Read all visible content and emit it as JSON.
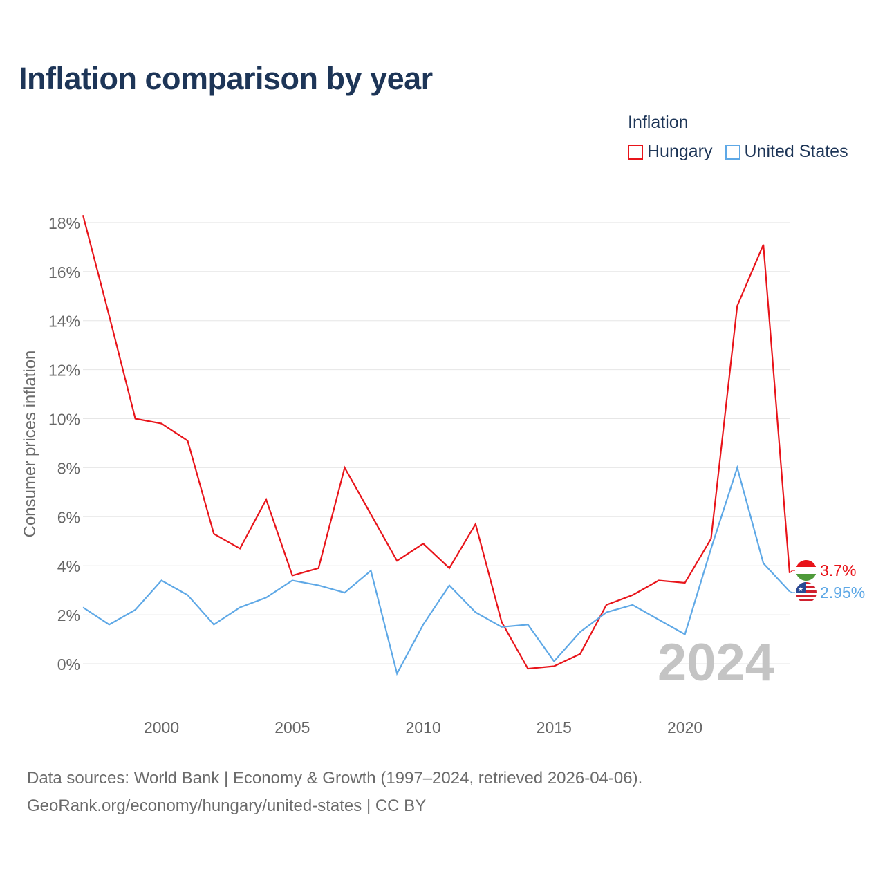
{
  "title": "Inflation comparison by year",
  "legend": {
    "title": "Inflation",
    "items": [
      {
        "label": "Hungary",
        "color": "#e8141a"
      },
      {
        "label": "United States",
        "color": "#5ea8e6"
      }
    ]
  },
  "footer": {
    "line1": "Data sources: World Bank | Economy & Growth (1997–2024, retrieved 2026-04-06).",
    "line2": "GeoRank.org/economy/hungary/united-states | CC BY"
  },
  "chart_data": {
    "type": "line",
    "title": "Inflation comparison by year",
    "xlabel": "",
    "ylabel": "Consumer prices inflation",
    "x": [
      1997,
      1998,
      1999,
      2000,
      2001,
      2002,
      2003,
      2004,
      2005,
      2006,
      2007,
      2008,
      2009,
      2010,
      2011,
      2012,
      2013,
      2014,
      2015,
      2016,
      2017,
      2018,
      2019,
      2020,
      2021,
      2022,
      2023,
      2024
    ],
    "xlim": [
      1997,
      2024
    ],
    "ylim": [
      -1,
      18.5
    ],
    "xticks": [
      2000,
      2005,
      2010,
      2015,
      2020
    ],
    "xtick_labels": [
      "2000",
      "2005",
      "2010",
      "2015",
      "2020"
    ],
    "yticks": [
      0,
      2,
      4,
      6,
      8,
      10,
      12,
      14,
      16,
      18
    ],
    "ytick_labels": [
      "0%",
      "2%",
      "4%",
      "6%",
      "8%",
      "10%",
      "12%",
      "14%",
      "16%",
      "18%"
    ],
    "grid": true,
    "year_watermark": "2024",
    "series": [
      {
        "name": "Hungary",
        "color": "#e8141a",
        "values": [
          18.3,
          14.2,
          10.0,
          9.8,
          9.1,
          5.3,
          4.7,
          6.7,
          3.6,
          3.9,
          8.0,
          6.1,
          4.2,
          4.9,
          3.9,
          5.7,
          1.7,
          -0.2,
          -0.1,
          0.4,
          2.4,
          2.8,
          3.4,
          3.3,
          5.1,
          14.6,
          17.1,
          3.7
        ],
        "end_label": "3.7%"
      },
      {
        "name": "United States",
        "color": "#5ea8e6",
        "values": [
          2.3,
          1.6,
          2.2,
          3.4,
          2.8,
          1.6,
          2.3,
          2.7,
          3.4,
          3.2,
          2.9,
          3.8,
          -0.4,
          1.6,
          3.2,
          2.1,
          1.5,
          1.6,
          0.1,
          1.3,
          2.1,
          2.4,
          1.8,
          1.2,
          4.7,
          8.0,
          4.1,
          2.95
        ],
        "end_label": "2.95%"
      }
    ]
  }
}
